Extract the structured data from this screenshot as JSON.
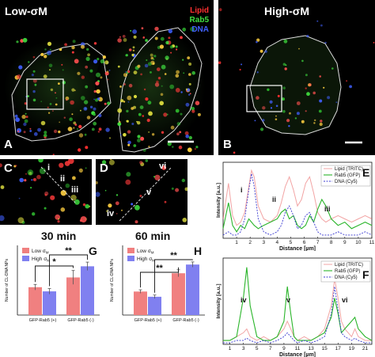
{
  "panels": {
    "A": {
      "letter": "A",
      "title": "Low-σM",
      "legend": [
        "Lipid",
        "Rab5",
        "DNA"
      ]
    },
    "B": {
      "letter": "B",
      "title": "High-σM"
    },
    "C": {
      "letter": "C",
      "marks": [
        "i",
        "ii",
        "iii"
      ]
    },
    "D": {
      "letter": "D",
      "marks": [
        "iv",
        "v",
        "vi"
      ]
    },
    "E": {
      "letter": "E"
    },
    "F": {
      "letter": "F"
    },
    "G": {
      "letter": "G",
      "time": "30 min"
    },
    "H": {
      "letter": "H",
      "time": "60 min"
    }
  },
  "colors": {
    "lipid": "#e85a5a",
    "rab5": "#2ab52a",
    "dna": "#3a3ad0",
    "low_bar": "#f08080",
    "high_bar": "#8080f0"
  },
  "chart_data": [
    {
      "id": "E",
      "type": "line",
      "xlabel": "Distance [µm]",
      "ylabel": "Intensity [a.u.]",
      "xlim": [
        0,
        11
      ],
      "x_ticks": [
        1,
        2,
        3,
        4,
        5,
        6,
        7,
        8,
        9,
        10,
        11
      ],
      "legend": [
        "Lipid (TRITC)",
        "Rab5 (GFP)",
        "DNA (Cy5)"
      ],
      "annotations": [
        "i",
        "ii",
        "iii"
      ],
      "series": [
        {
          "name": "Lipid (TRITC)",
          "x": [
            0,
            0.4,
            0.7,
            1,
            1.3,
            1.6,
            1.9,
            2.1,
            2.3,
            2.6,
            3,
            3.5,
            4,
            4.3,
            4.6,
            4.9,
            5.2,
            5.5,
            5.8,
            6.1,
            6.4,
            6.7,
            7,
            7.3,
            7.6,
            8,
            8.5,
            9,
            9.5,
            10,
            10.5,
            11
          ],
          "y": [
            0.3,
            0.85,
            0.35,
            0.2,
            0.25,
            0.4,
            0.8,
            1.05,
            0.95,
            0.5,
            0.3,
            0.25,
            0.35,
            0.55,
            0.8,
            0.95,
            0.75,
            0.5,
            0.6,
            0.85,
            0.95,
            0.7,
            0.4,
            0.3,
            0.25,
            0.3,
            0.35,
            0.3,
            0.25,
            0.3,
            0.35,
            0.3
          ]
        },
        {
          "name": "Rab5 (GFP)",
          "x": [
            0,
            0.4,
            0.7,
            1,
            1.3,
            1.6,
            1.9,
            2.1,
            2.3,
            2.6,
            3,
            3.5,
            4,
            4.3,
            4.6,
            4.9,
            5.2,
            5.5,
            5.8,
            6.1,
            6.4,
            6.7,
            7,
            7.3,
            7.6,
            8,
            8.5,
            9,
            9.5,
            10,
            10.5,
            11
          ],
          "y": [
            0.15,
            0.55,
            0.2,
            0.1,
            0.2,
            0.15,
            0.3,
            0.25,
            0.2,
            0.15,
            0.2,
            0.25,
            0.3,
            0.4,
            0.45,
            0.3,
            0.35,
            0.2,
            0.15,
            0.2,
            0.35,
            0.25,
            0.45,
            0.6,
            0.5,
            0.3,
            0.2,
            0.25,
            0.15,
            0.2,
            0.25,
            0.2
          ]
        },
        {
          "name": "DNA (Cy5)",
          "x": [
            0,
            0.4,
            0.7,
            1,
            1.3,
            1.6,
            1.9,
            2.1,
            2.3,
            2.6,
            3,
            3.5,
            4,
            4.3,
            4.6,
            4.9,
            5.2,
            5.5,
            5.8,
            6.1,
            6.4,
            6.7,
            7,
            7.3,
            7.6,
            8,
            8.5,
            9,
            9.5,
            10,
            10.5,
            11
          ],
          "y": [
            0.05,
            0.1,
            0.05,
            0.05,
            0.1,
            0.3,
            0.75,
            1.0,
            0.8,
            0.3,
            0.1,
            0.05,
            0.1,
            0.2,
            0.4,
            0.5,
            0.35,
            0.15,
            0.2,
            0.35,
            0.4,
            0.25,
            0.1,
            0.05,
            0.05,
            0.05,
            0.1,
            0.05,
            0.05,
            0.05,
            0.1,
            0.05
          ]
        }
      ]
    },
    {
      "id": "F",
      "type": "line",
      "xlabel": "Distance [µm]",
      "ylabel": "Intensity [a.u.]",
      "xlim": [
        0,
        22
      ],
      "x_ticks": [
        1,
        3,
        5,
        7,
        9,
        11,
        13,
        15,
        17,
        19,
        21
      ],
      "legend": [
        "Lipid (TRITC)",
        "Rab5 (GFP)",
        "DNA (Cy5)"
      ],
      "annotations": [
        "iv",
        "v",
        "vi"
      ],
      "series": [
        {
          "name": "Lipid (TRITC)",
          "x": [
            0,
            1,
            2,
            3,
            3.5,
            4,
            5,
            6,
            7,
            8,
            9,
            9.5,
            10,
            10.5,
            11,
            12,
            13,
            14,
            15,
            16,
            16.5,
            17,
            17.5,
            18,
            19,
            19.5,
            20,
            21,
            22
          ],
          "y": [
            0.05,
            0.05,
            0.1,
            0.15,
            0.2,
            0.1,
            0.05,
            0.1,
            0.05,
            0.1,
            0.2,
            0.3,
            0.2,
            0.1,
            0.05,
            0.1,
            0.05,
            0.1,
            0.2,
            0.5,
            0.85,
            0.6,
            0.3,
            0.2,
            0.1,
            0.2,
            0.1,
            0.05,
            0.05
          ]
        },
        {
          "name": "Rab5 (GFP)",
          "x": [
            0,
            1,
            2,
            3,
            3.5,
            4,
            5,
            6,
            7,
            8,
            9,
            9.5,
            10,
            10.5,
            11,
            12,
            13,
            14,
            15,
            16,
            16.5,
            17,
            17.5,
            18,
            19,
            19.5,
            20,
            21,
            22
          ],
          "y": [
            0.05,
            0.05,
            0.1,
            0.6,
            1.0,
            0.5,
            0.1,
            0.05,
            0.05,
            0.1,
            0.3,
            0.75,
            0.4,
            0.1,
            0.05,
            0.05,
            0.05,
            0.1,
            0.15,
            0.35,
            0.6,
            0.4,
            0.15,
            0.2,
            0.3,
            0.35,
            0.2,
            0.1,
            0.05
          ]
        },
        {
          "name": "DNA (Cy5)",
          "x": [
            0,
            1,
            2,
            3,
            3.5,
            4,
            5,
            6,
            7,
            8,
            9,
            9.5,
            10,
            10.5,
            11,
            12,
            13,
            14,
            15,
            16,
            16.5,
            17,
            17.5,
            18,
            19,
            19.5,
            20,
            21,
            22
          ],
          "y": [
            0.02,
            0.02,
            0.05,
            0.05,
            0.08,
            0.05,
            0.02,
            0.05,
            0.02,
            0.05,
            0.1,
            0.15,
            0.1,
            0.05,
            0.02,
            0.05,
            0.02,
            0.05,
            0.1,
            0.4,
            0.75,
            0.45,
            0.15,
            0.1,
            0.05,
            0.08,
            0.05,
            0.02,
            0.02
          ]
        }
      ]
    },
    {
      "id": "G",
      "type": "bar",
      "ylabel": "Number of CL-DNA NPs",
      "categories": [
        "GFP-Rab5 (+)",
        "GFP-Rab5 (-)"
      ],
      "legend": [
        "Low σM",
        "High σM"
      ],
      "series": [
        {
          "name": "Low σM",
          "values": [
            20,
            27
          ],
          "errors": [
            2,
            5
          ]
        },
        {
          "name": "High σM",
          "values": [
            17,
            35
          ],
          "errors": [
            2,
            3
          ]
        }
      ],
      "ylim": [
        0,
        50
      ],
      "significance": [
        "*",
        "**"
      ]
    },
    {
      "id": "H",
      "type": "bar",
      "ylabel": "Number of CL-DNA NPs",
      "categories": [
        "GFP-Rab5 (+)",
        "GFP-Rab5 (-)"
      ],
      "legend": [
        "Low σM",
        "High σM"
      ],
      "series": [
        {
          "name": "Low σM",
          "values": [
            27,
            48
          ],
          "errors": [
            2,
            4
          ]
        },
        {
          "name": "High σM",
          "values": [
            21,
            58
          ],
          "errors": [
            2,
            3
          ]
        }
      ],
      "ylim": [
        0,
        80
      ],
      "significance": [
        "**",
        "**"
      ]
    }
  ]
}
